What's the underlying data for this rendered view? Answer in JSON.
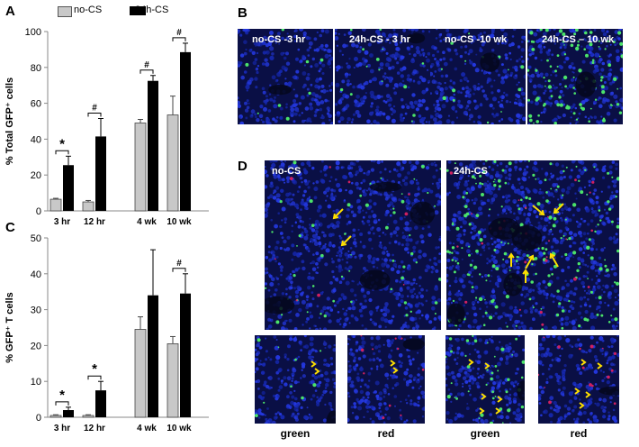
{
  "panel_letters": {
    "a": "A",
    "b": "B",
    "c": "C",
    "d": "D"
  },
  "legend": {
    "no_cs": "no-CS",
    "cs_24h": "24h-CS"
  },
  "colors": {
    "no_cs": "#c8c8c8",
    "cs_24h": "#000000",
    "tissue": "#0a0f45",
    "nuclei": "#1e2fd6",
    "gfp": "#4be36a",
    "arrow": "#ffe000"
  },
  "chart_data": [
    {
      "type": "bar",
      "ylabel": "% Total GFP⁺ cells",
      "ylim": [
        0,
        100
      ],
      "yticks": [
        0,
        20,
        40,
        60,
        80,
        100
      ],
      "groups": [
        {
          "label": "3 hr",
          "no_cs": 6.5,
          "no_cs_err": 0.5,
          "cs": 25.5,
          "cs_err": 5,
          "sig": "*"
        },
        {
          "label": "12 hr",
          "no_cs": 5,
          "no_cs_err": 0.8,
          "cs": 41.5,
          "cs_err": 10,
          "sig": "#"
        },
        {
          "label": "4 wk",
          "no_cs": 49,
          "no_cs_err": 2,
          "cs": 72.5,
          "cs_err": 3,
          "sig": "#"
        },
        {
          "label": "10 wk",
          "no_cs": 53.5,
          "no_cs_err": 10.5,
          "cs": 88.5,
          "cs_err": 5,
          "sig": "#"
        }
      ]
    },
    {
      "type": "bar",
      "ylabel": "% GFP⁺ T cells",
      "ylim": [
        0,
        50
      ],
      "yticks": [
        0,
        10,
        20,
        30,
        40,
        50
      ],
      "groups": [
        {
          "label": "3 hr",
          "no_cs": 0.5,
          "no_cs_err": 0.2,
          "cs": 2,
          "cs_err": 0.8,
          "sig": "*"
        },
        {
          "label": "12 hr",
          "no_cs": 0.5,
          "no_cs_err": 0.2,
          "cs": 7.5,
          "cs_err": 2.5,
          "sig": "*"
        },
        {
          "label": "4 wk",
          "no_cs": 24.5,
          "no_cs_err": 3.5,
          "cs": 34,
          "cs_err": 12.7,
          "sig": ""
        },
        {
          "label": "10 wk",
          "no_cs": 20.5,
          "no_cs_err": 2,
          "cs": 34.5,
          "cs_err": 5.5,
          "sig": "#"
        }
      ]
    }
  ],
  "panel_b": {
    "images": [
      {
        "label": "no-CS -3 hr"
      },
      {
        "label": "24h-CS - 3 hr"
      },
      {
        "label": "no-CS -10 wk"
      },
      {
        "label": "24h-CS – 10 wk"
      }
    ]
  },
  "panel_d": {
    "large": [
      {
        "label": "no-CS"
      },
      {
        "label": "24h-CS"
      }
    ],
    "small_captions": [
      "green",
      "red",
      "green",
      "red"
    ]
  }
}
